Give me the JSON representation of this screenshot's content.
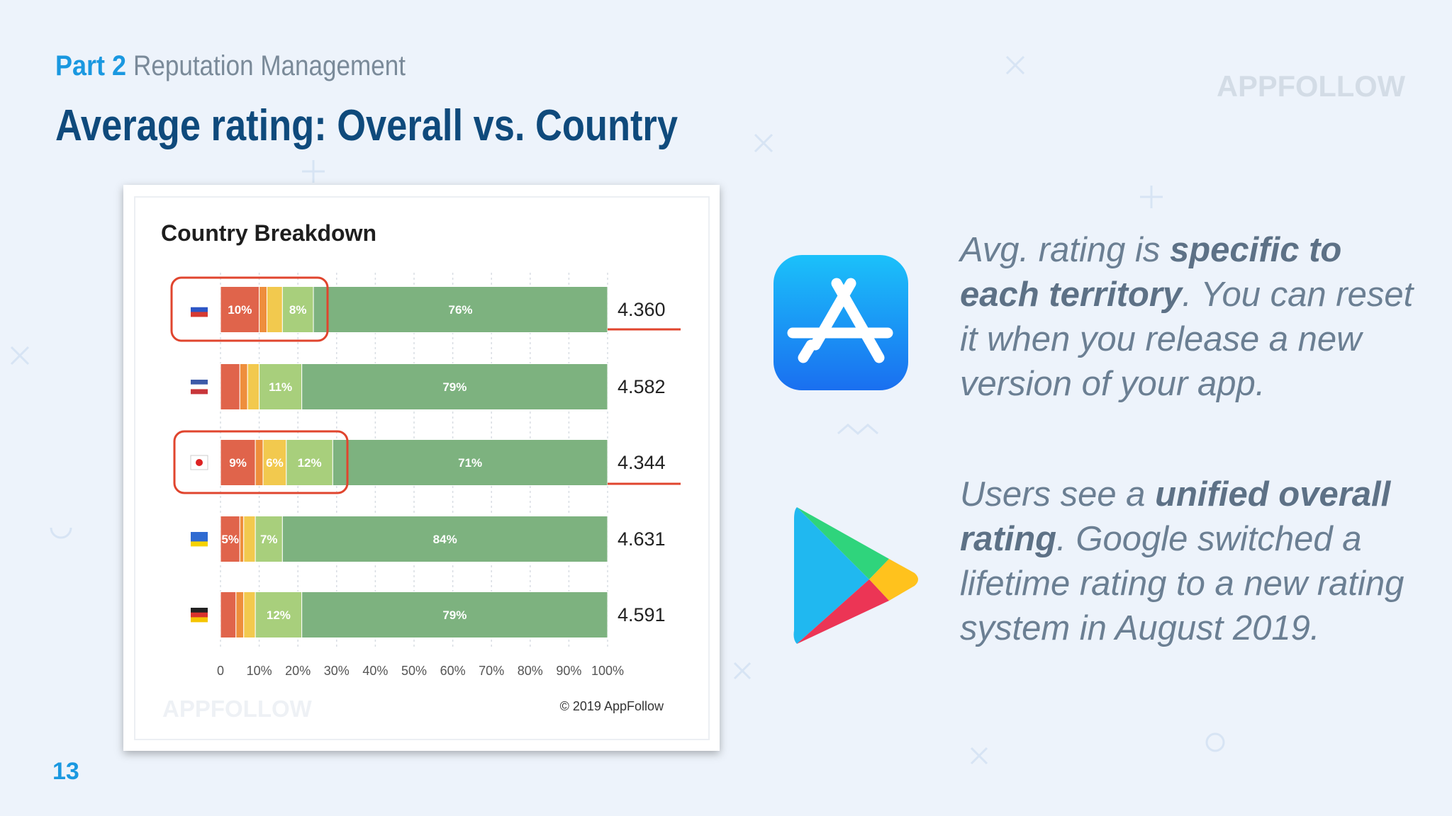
{
  "header": {
    "part": "Part 2",
    "section": "Reputation Management",
    "title": "Average rating: Overall vs. Country",
    "watermark": "APPFOLLOW"
  },
  "chart_data": {
    "type": "stacked-bar-horizontal",
    "title": "Country Breakdown",
    "categories": [
      null,
      null,
      null,
      null,
      null
    ],
    "series": [
      {
        "color": "#e0644b",
        "values": [
          10,
          5,
          9,
          5,
          4
        ],
        "value_labels": [
          "10%",
          null,
          "9%",
          "5%",
          null
        ]
      },
      {
        "color": "#ee8e3c",
        "values": [
          2,
          2,
          2,
          1,
          2
        ],
        "value_labels": [
          null,
          null,
          null,
          null,
          null
        ]
      },
      {
        "color": "#f2c94e",
        "values": [
          4,
          3,
          6,
          3,
          3
        ],
        "value_labels": [
          null,
          null,
          "6%",
          null,
          null
        ]
      },
      {
        "color": "#a8cf7c",
        "values": [
          8,
          11,
          12,
          7,
          12
        ],
        "value_labels": [
          "8%",
          "11%",
          "12%",
          "7%",
          "12%"
        ]
      },
      {
        "color": "#7db27f",
        "values": [
          76,
          79,
          71,
          84,
          79
        ],
        "value_labels": [
          "76%",
          "79%",
          "71%",
          "84%",
          "79%"
        ]
      }
    ],
    "ratings": [
      "4.360",
      "4.582",
      "4.344",
      "4.631",
      "4.591"
    ],
    "xlim": [
      0,
      100
    ],
    "xticks": [
      0,
      {
        "value": 10,
        "label": "10%"
      },
      {
        "value": 20,
        "label": "20%"
      },
      {
        "value": 30,
        "label": "30%"
      },
      {
        "value": 40,
        "label": "40%"
      },
      {
        "value": 50,
        "label": "50%"
      },
      {
        "value": 60,
        "label": "60%"
      },
      {
        "value": 70,
        "label": "70%"
      },
      {
        "value": 80,
        "label": "80%"
      },
      {
        "value": 90,
        "label": "90%"
      },
      {
        "value": 100,
        "label": "100%"
      }
    ],
    "grid": true,
    "copyright": "© 2019 AppFollow",
    "watermark": "APPFOLLOW"
  },
  "paragraphs": [
    {
      "runs": [
        {
          "text": "Avg. rating is "
        },
        {
          "text": "specific to each territory",
          "bold": true
        },
        {
          "text": ". You can reset it when you release a new version of your app."
        }
      ]
    },
    {
      "runs": [
        {
          "text": "Users see a "
        },
        {
          "text": "unified overall rating",
          "bold": true
        },
        {
          "text": ". Google switched a lifetime rating to a new rating system in August 2019."
        }
      ]
    }
  ],
  "page_number": "13"
}
